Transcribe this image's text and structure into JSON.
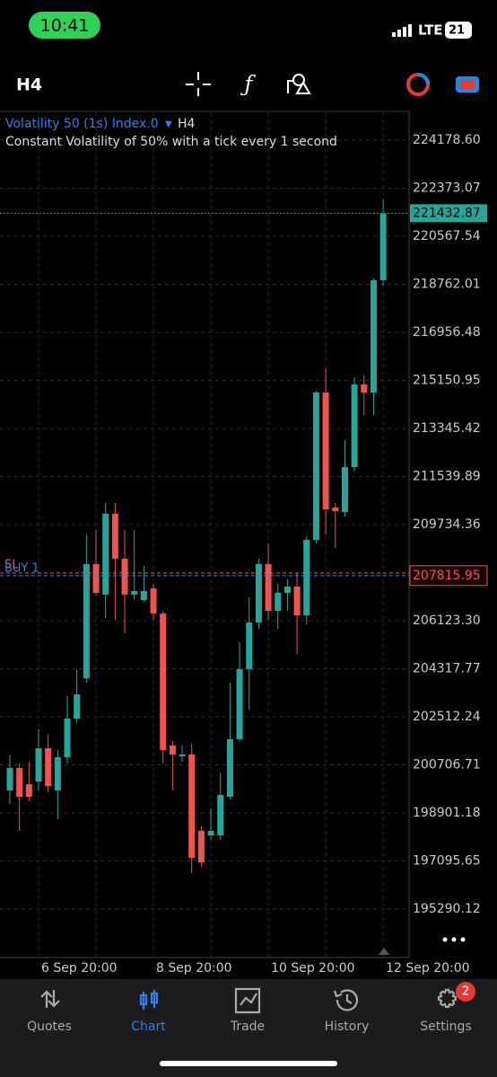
{
  "status_bar": {
    "time": "10:41",
    "network": "LTE",
    "battery": "21"
  },
  "toolbar": {
    "timeframe": "H4"
  },
  "chart_data": {
    "type": "candlestick",
    "title": "Volatility 50 (1s) Index.0",
    "timeframe": "H4",
    "subtitle": "Constant Volatility of 50% with a tick every 1 second",
    "categories": [
      null,
      null,
      null,
      "6 Sep 20:00",
      null,
      null,
      null,
      null,
      null,
      null,
      null,
      null,
      null,
      null,
      null,
      "8 Sep 20:00",
      null,
      null,
      null,
      null,
      null,
      null,
      null,
      null,
      null,
      null,
      null,
      "10 Sep 20:00",
      null,
      null,
      null,
      null,
      null,
      null,
      null,
      null,
      null,
      null,
      null,
      "12 Sep 20:00"
    ],
    "open": [
      199744,
      200588,
      199980,
      200081,
      201330,
      199744,
      200993,
      202444,
      203963,
      208249,
      207101,
      210139,
      208451,
      207101,
      206899,
      207337,
      206392,
      201431,
      201026,
      201094,
      198225,
      198056,
      198056,
      199508,
      201668,
      204300,
      206055,
      208249,
      206494,
      207169,
      207405,
      206325,
      209160,
      214695,
      210375,
      210206,
      211894,
      214999,
      214695,
      218914
    ],
    "high": [
      201094,
      200756,
      200824,
      202039,
      201836,
      201263,
      203288,
      204300,
      209362,
      209531,
      210544,
      210544,
      209531,
      209531,
      208181,
      207506,
      206494,
      201600,
      201431,
      201499,
      198394,
      199069,
      200419,
      203794,
      205312,
      207000,
      208451,
      209025,
      207506,
      207675,
      207911,
      209295,
      214763,
      215606,
      210544,
      212906,
      215269,
      215336,
      218981,
      221951
    ],
    "low": [
      199238,
      198225,
      199339,
      199744,
      199676,
      198664,
      200756,
      202275,
      203794,
      207101,
      206224,
      206156,
      205650,
      206899,
      206831,
      206156,
      200756,
      199744,
      200824,
      196639,
      196875,
      197888,
      197888,
      199406,
      201600,
      202781,
      205819,
      206156,
      205819,
      206494,
      204874,
      205988,
      209025,
      209362,
      208856,
      210037,
      211725,
      213851,
      213851,
      218711
    ],
    "close": [
      200588,
      199508,
      199508,
      201330,
      199913,
      200993,
      202444,
      203355,
      208249,
      207169,
      210139,
      208451,
      207101,
      207236,
      207236,
      206392,
      201263,
      201094,
      201094,
      197213,
      197044,
      198225,
      199575,
      201668,
      204300,
      206055,
      208249,
      206494,
      207169,
      207405,
      206325,
      209160,
      214695,
      210307,
      210240,
      211894,
      214999,
      214695,
      218914,
      221411
    ],
    "up_color": "#26a69a",
    "down_color": "#ef5350",
    "ylim": [
      193500,
      225225
    ],
    "yticks": [
      {
        "value": 224178.6,
        "label": "224178.60"
      },
      222373.07,
      220567.54,
      218762.01,
      216956.48,
      215150.95,
      213345.42,
      211539.89,
      209734.36,
      {
        "value": 207815.95,
        "label": "207815.95"
      },
      {
        "value": 206123.3,
        "label": "206123.30"
      },
      204317.77,
      202512.24,
      200706.71,
      198901.18,
      197095.65,
      195290.12
    ],
    "current_price": 221432.87,
    "order_label": "BUY 1",
    "sl_label": "SL",
    "grid": true
  },
  "nav": {
    "items": [
      "Quotes",
      "Chart",
      "Trade",
      "History",
      "Settings"
    ],
    "active": 1,
    "badge": "2"
  }
}
